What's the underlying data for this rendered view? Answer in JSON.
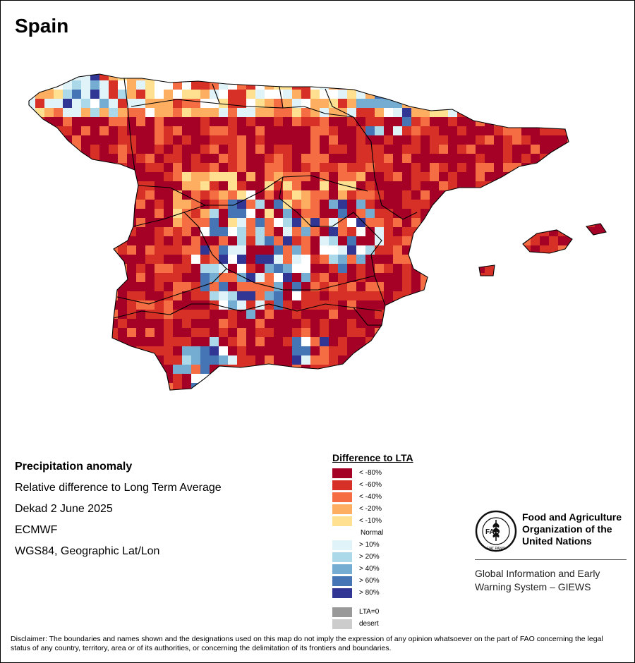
{
  "map": {
    "title": "Spain",
    "info": {
      "variable": "Precipitation anomaly",
      "description": "Relative difference to Long Term Average",
      "period": "Dekad 2 June 2025",
      "source": "ECMWF",
      "projection": "WGS84, Geographic Lat/Lon"
    },
    "legend": {
      "title": "Difference to LTA",
      "classes": [
        {
          "label": "< -80%",
          "color": "#a50026"
        },
        {
          "label": "< -60%",
          "color": "#d73027"
        },
        {
          "label": "< -40%",
          "color": "#f46d43"
        },
        {
          "label": "< -20%",
          "color": "#fdae61"
        },
        {
          "label": "< -10%",
          "color": "#fee090"
        },
        {
          "label": "Normal",
          "color": "#ffffff"
        },
        {
          "label": "> 10%",
          "color": "#e0f3f8"
        },
        {
          "label": "> 20%",
          "color": "#abd9e9"
        },
        {
          "label": "> 40%",
          "color": "#74add1"
        },
        {
          "label": "> 60%",
          "color": "#4575b4"
        },
        {
          "label": "> 80%",
          "color": "#313695"
        }
      ],
      "extras": [
        {
          "label": "LTA=0",
          "color": "#999999"
        },
        {
          "label": "desert",
          "color": "#cccccc"
        }
      ]
    }
  },
  "organization": {
    "logo_icon": "fao-logo-icon",
    "name_lines": [
      "Food and Agriculture",
      "Organization of the",
      "United Nations"
    ],
    "logo_text": {
      "top": "FAO",
      "bottom": "FIAT PANIS"
    },
    "system_lines": [
      "Global Information and Early",
      "Warning System – GIEWS"
    ]
  },
  "disclaimer": "Disclaimer: The boundaries and names shown and the designations used on this map do not imply the expression of any opinion whatsoever on the part of FAO concerning the legal status of any country, territory, area or of its authorities, or concerning the delimitation of its frontiers and boundaries."
}
